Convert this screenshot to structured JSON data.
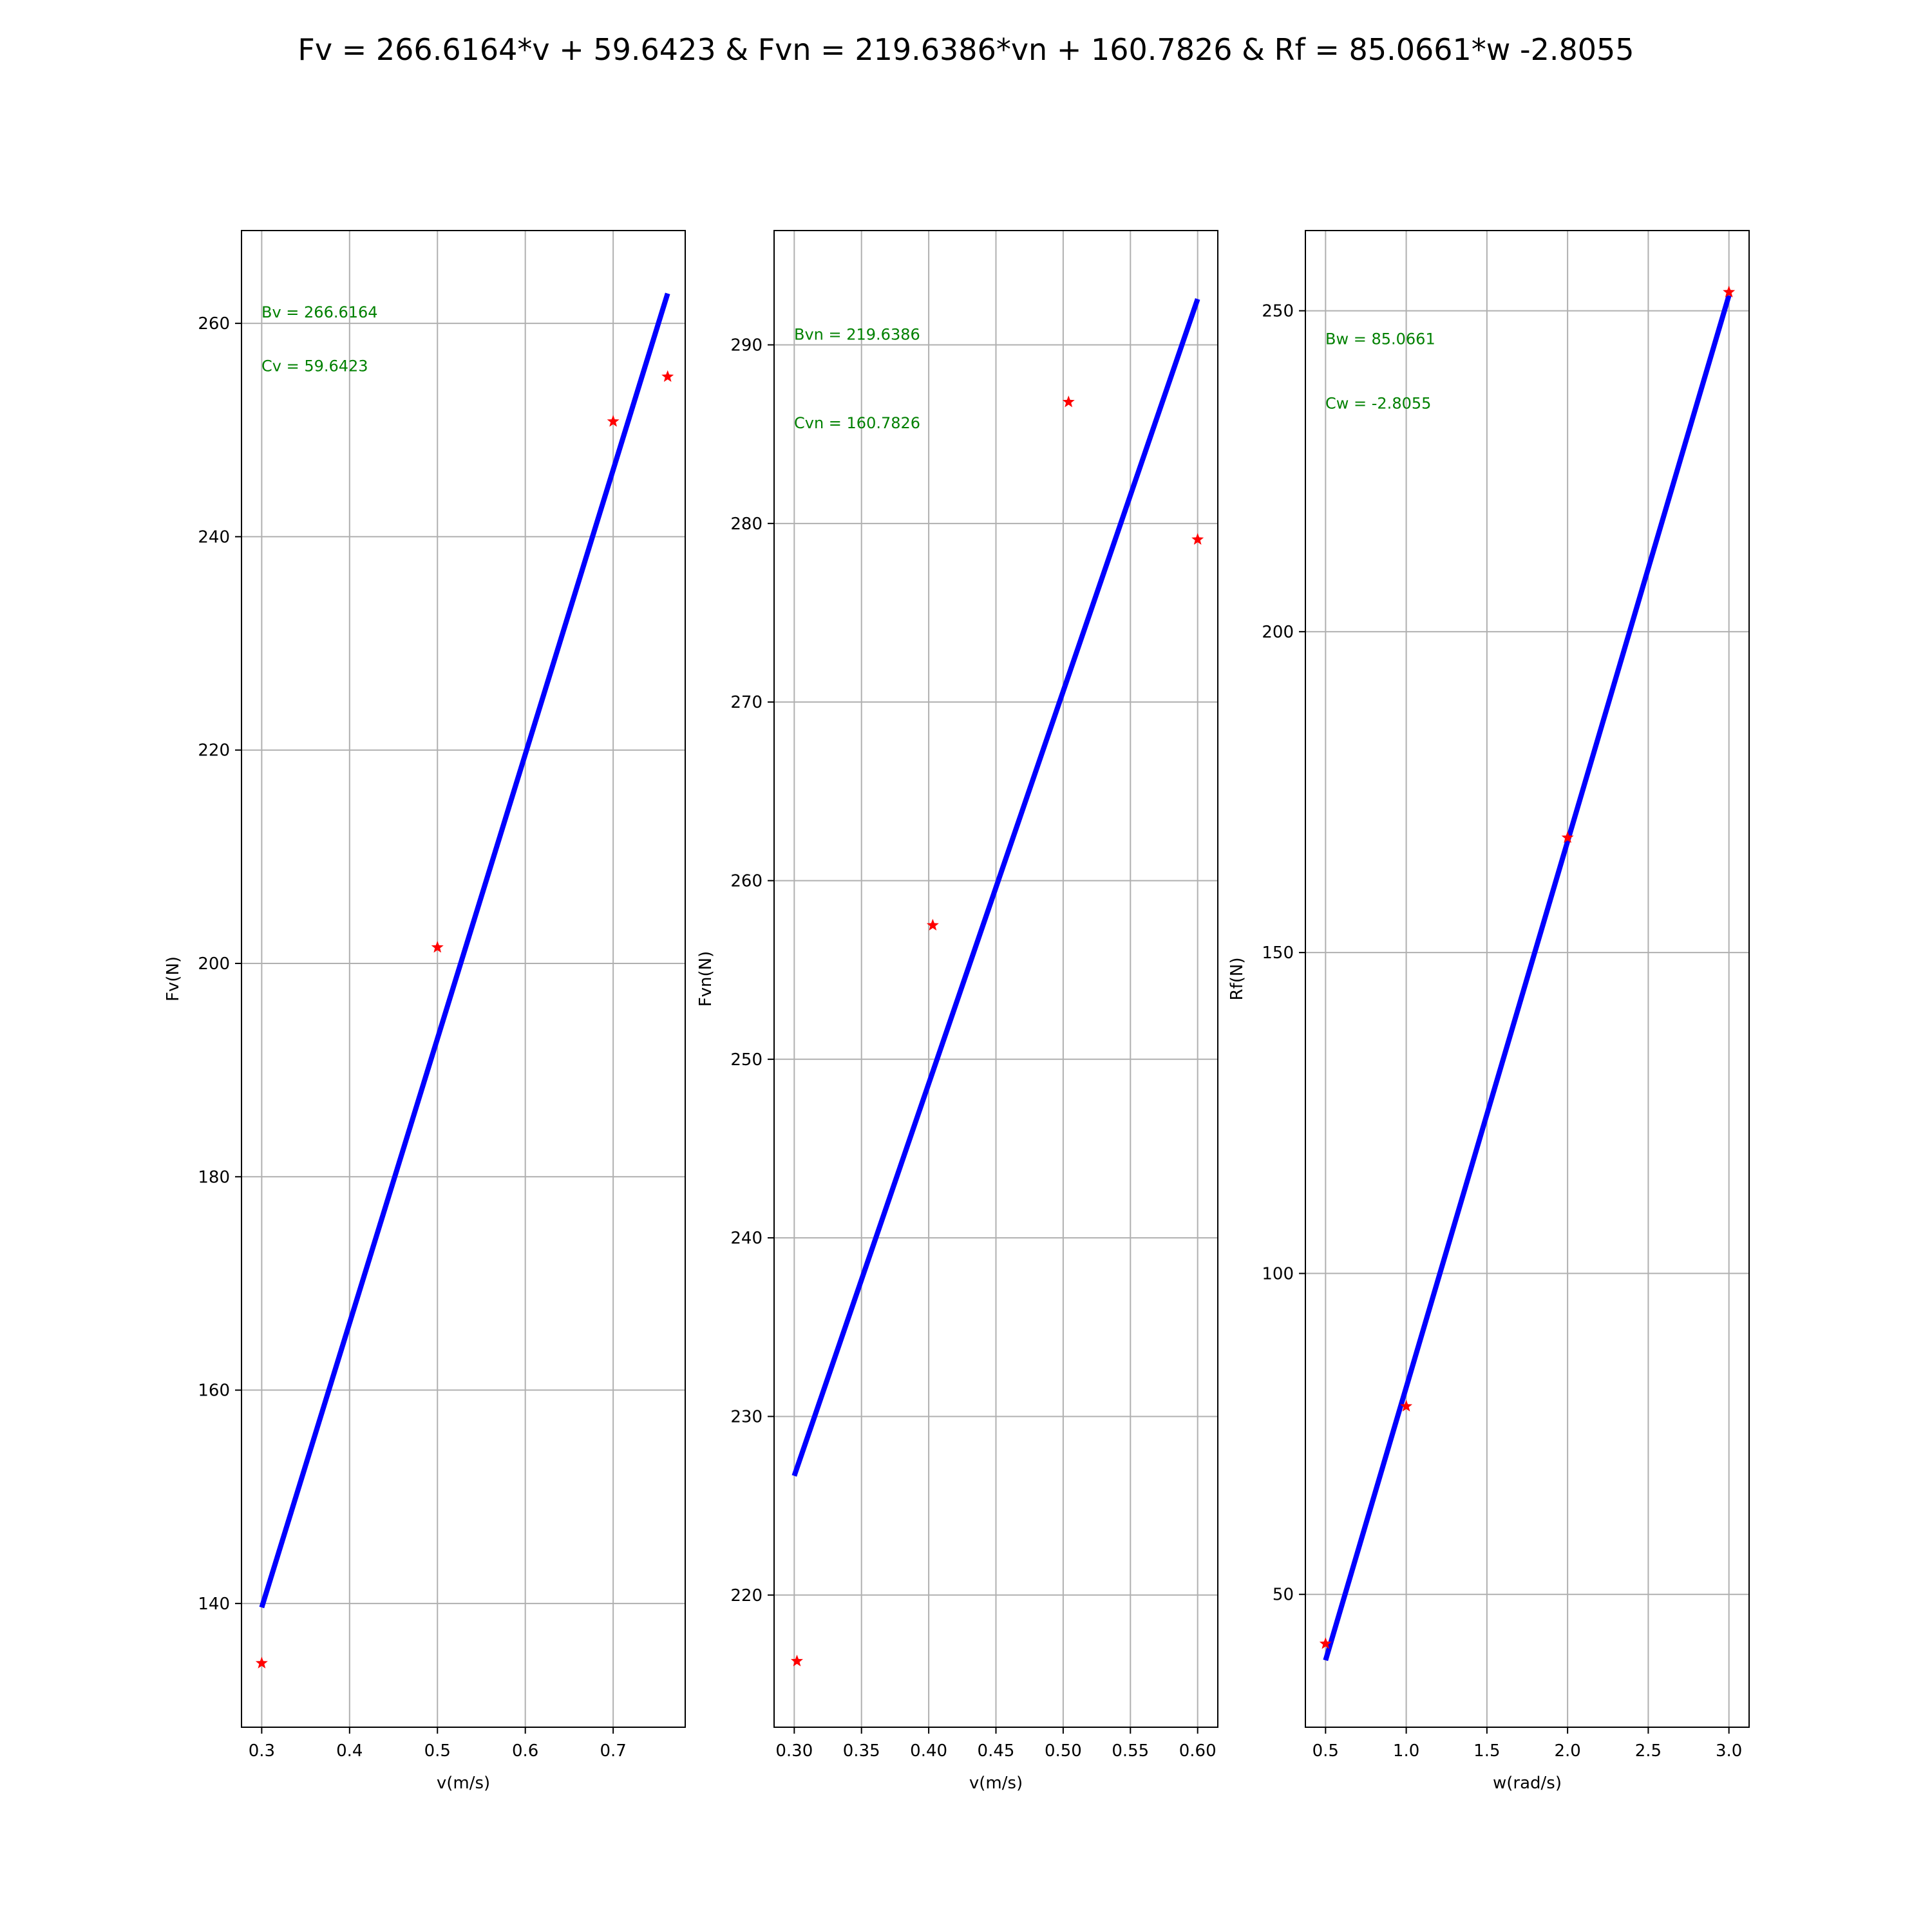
{
  "title": "Fv = 266.6164*v + 59.6423 & Fvn = 219.6386*vn + 160.7826 & Rf =  85.0661*w -2.8055",
  "colors": {
    "fit_line": "#0000ff",
    "markers": "#ff0000",
    "annotation": "#008000",
    "grid": "#b0b0b0"
  },
  "chart_data": [
    {
      "type": "scatter",
      "xlabel": "v(m/s)",
      "ylabel": "Fv(N)",
      "xlim": [
        0.277,
        0.782
      ],
      "ylim": [
        128.4,
        268.7
      ],
      "xticks": [
        0.3,
        0.4,
        0.5,
        0.6,
        0.7
      ],
      "xtick_labels": [
        "0.3",
        "0.4",
        "0.5",
        "0.6",
        "0.7"
      ],
      "yticks": [
        140,
        160,
        180,
        200,
        220,
        240,
        260
      ],
      "ytick_labels": [
        "140",
        "160",
        "180",
        "200",
        "220",
        "240",
        "260"
      ],
      "grid": true,
      "points": [
        {
          "x": 0.3,
          "y": 134.4
        },
        {
          "x": 0.5,
          "y": 201.5
        },
        {
          "x": 0.7,
          "y": 250.8
        },
        {
          "x": 0.762,
          "y": 255.0
        }
      ],
      "fit": {
        "slope": 266.6164,
        "intercept": 59.6423,
        "x_range": [
          0.3,
          0.762
        ]
      },
      "annotations": [
        "Bv = 266.6164",
        "Cv = 59.6423"
      ]
    },
    {
      "type": "scatter",
      "xlabel": "v(m/s)",
      "ylabel": "Fvn(N)",
      "xlim": [
        0.285,
        0.615
      ],
      "ylim": [
        212.6,
        296.4
      ],
      "xticks": [
        0.3,
        0.35,
        0.4,
        0.45,
        0.5,
        0.55,
        0.6
      ],
      "xtick_labels": [
        "0.30",
        "0.35",
        "0.40",
        "0.45",
        "0.50",
        "0.55",
        "0.60"
      ],
      "yticks": [
        220,
        230,
        240,
        250,
        260,
        270,
        280,
        290
      ],
      "ytick_labels": [
        "220",
        "230",
        "240",
        "250",
        "260",
        "270",
        "280",
        "290"
      ],
      "grid": true,
      "points": [
        {
          "x": 0.302,
          "y": 216.3
        },
        {
          "x": 0.403,
          "y": 257.5
        },
        {
          "x": 0.504,
          "y": 286.8
        },
        {
          "x": 0.6,
          "y": 279.1
        }
      ],
      "fit": {
        "slope": 219.6386,
        "intercept": 160.7826,
        "x_range": [
          0.3,
          0.6
        ]
      },
      "annotations": [
        "Bvn = 219.6386",
        "Cvn = 160.7826"
      ]
    },
    {
      "type": "scatter",
      "xlabel": "w(rad/s)",
      "ylabel": "Rf(N)",
      "xlim": [
        0.375,
        3.125
      ],
      "ylim": [
        29.3,
        262.5
      ],
      "xticks": [
        0.5,
        1.0,
        1.5,
        2.0,
        2.5,
        3.0
      ],
      "xtick_labels": [
        "0.5",
        "1.0",
        "1.5",
        "2.0",
        "2.5",
        "3.0"
      ],
      "yticks": [
        50,
        100,
        150,
        200,
        250
      ],
      "ytick_labels": [
        "50",
        "100",
        "150",
        "200",
        "250"
      ],
      "grid": true,
      "points": [
        {
          "x": 0.5,
          "y": 42.3
        },
        {
          "x": 1.0,
          "y": 79.3
        },
        {
          "x": 2.0,
          "y": 167.9
        },
        {
          "x": 3.0,
          "y": 252.9
        }
      ],
      "fit": {
        "slope": 85.0661,
        "intercept": -2.8055,
        "x_range": [
          0.5,
          3.0
        ]
      },
      "annotations": [
        "Bw = 85.0661",
        "Cw = -2.8055"
      ]
    }
  ]
}
